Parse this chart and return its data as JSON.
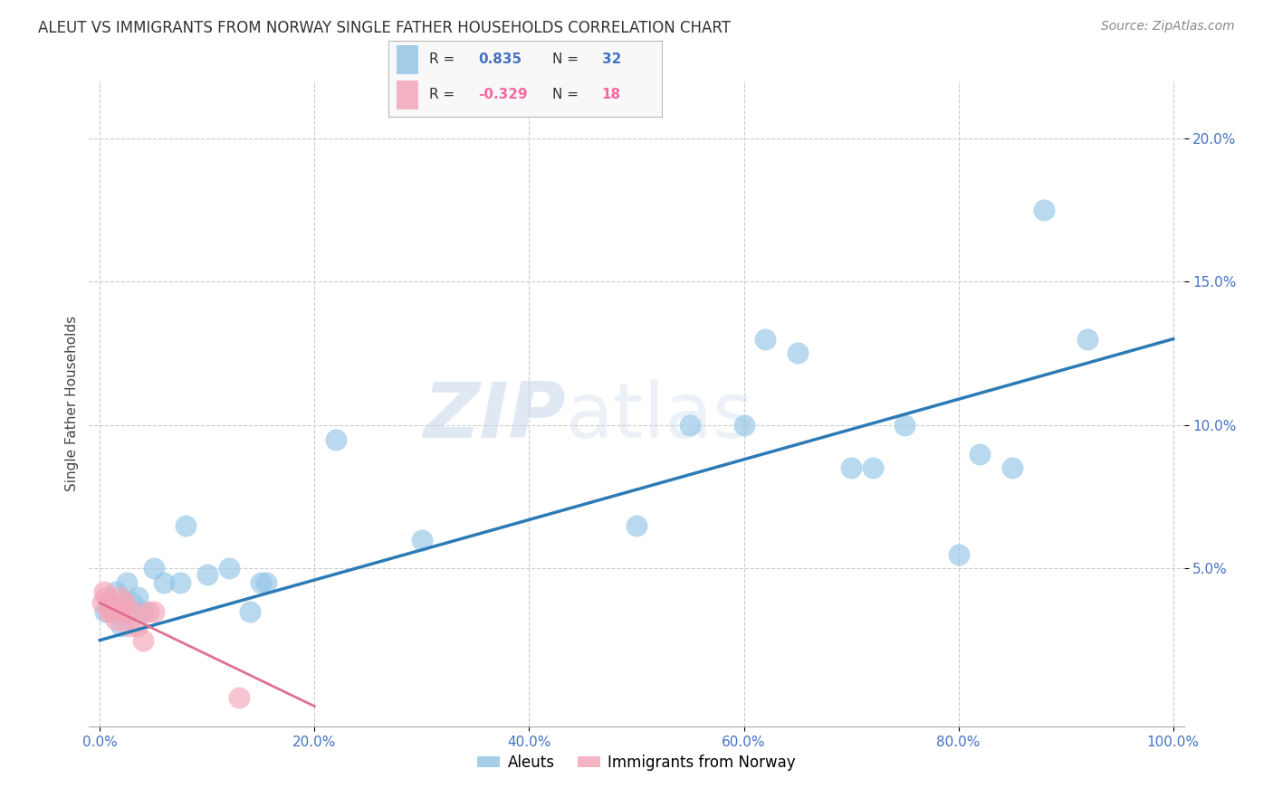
{
  "title": "ALEUT VS IMMIGRANTS FROM NORWAY SINGLE FATHER HOUSEHOLDS CORRELATION CHART",
  "source": "Source: ZipAtlas.com",
  "ylabel_label": "Single Father Households",
  "x_tick_vals": [
    0,
    20,
    40,
    60,
    80,
    100
  ],
  "y_tick_vals": [
    5,
    10,
    15,
    20
  ],
  "xlim": [
    -1,
    101
  ],
  "ylim": [
    -0.5,
    22
  ],
  "aleuts_color": "#94c6e7",
  "norway_color": "#f4a7b9",
  "trendline_aleuts_color": "#2c7bb6",
  "trendline_norway_color": "#d7191c",
  "aleuts_R": 0.835,
  "aleuts_N": 32,
  "norway_R": -0.329,
  "norway_N": 18,
  "aleuts_x": [
    0.5,
    1.0,
    1.5,
    2.0,
    2.5,
    3.0,
    3.5,
    4.0,
    5.0,
    6.0,
    7.5,
    8.0,
    10.0,
    12.0,
    14.0,
    15.0,
    15.5,
    22.0,
    30.0,
    50.0,
    55.0,
    60.0,
    62.0,
    65.0,
    70.0,
    72.0,
    75.0,
    80.0,
    82.0,
    85.0,
    88.0,
    92.0
  ],
  "aleuts_y": [
    3.5,
    3.8,
    4.2,
    3.0,
    4.5,
    3.8,
    4.0,
    3.5,
    5.0,
    4.5,
    4.5,
    6.5,
    4.8,
    5.0,
    3.5,
    4.5,
    4.5,
    9.5,
    6.0,
    6.5,
    10.0,
    10.0,
    13.0,
    12.5,
    8.5,
    8.5,
    10.0,
    5.5,
    9.0,
    8.5,
    17.5,
    13.0
  ],
  "norway_x": [
    0.2,
    0.4,
    0.6,
    0.8,
    1.0,
    1.2,
    1.5,
    1.8,
    2.0,
    2.3,
    2.5,
    2.8,
    3.0,
    3.5,
    4.0,
    4.5,
    5.0,
    13.0
  ],
  "norway_y": [
    3.8,
    4.2,
    4.0,
    3.5,
    3.8,
    3.5,
    3.2,
    4.0,
    3.5,
    3.8,
    3.5,
    3.0,
    3.5,
    3.0,
    2.5,
    3.5,
    3.5,
    0.5
  ],
  "watermark_zip": "ZIP",
  "watermark_atlas": "atlas",
  "background_color": "#ffffff",
  "grid_color": "#cccccc",
  "title_fontsize": 12,
  "axis_label_fontsize": 11,
  "tick_fontsize": 11,
  "source_fontsize": 10
}
